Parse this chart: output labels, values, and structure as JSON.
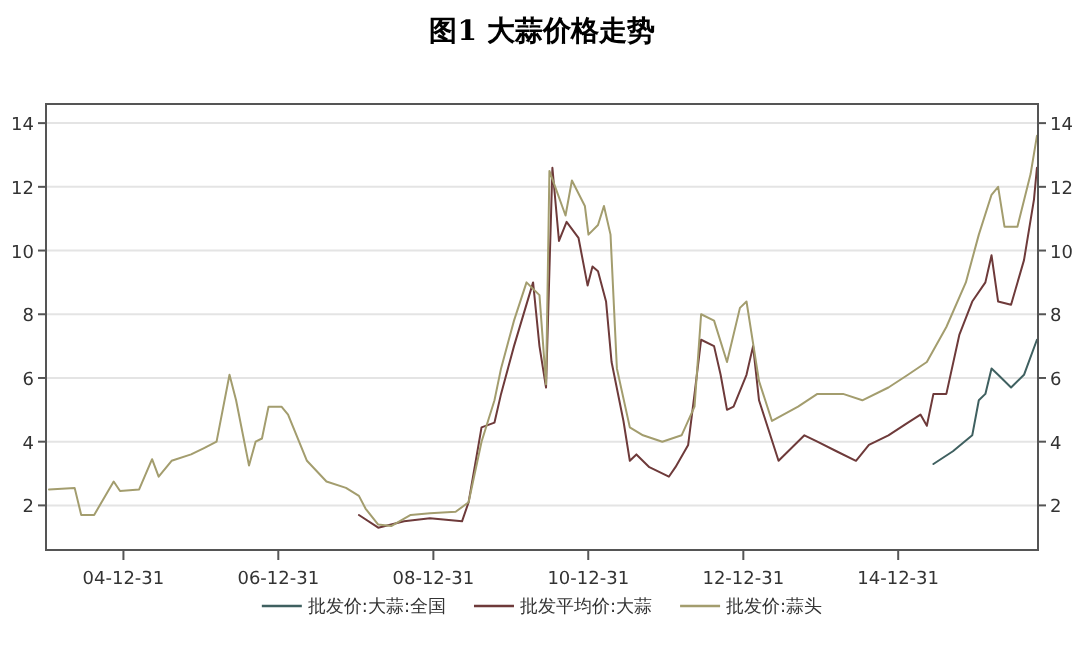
{
  "chart_data": {
    "type": "line",
    "title": "图1  大蒜价格走势",
    "grid": "y",
    "legend": "bottom",
    "marker": "none",
    "line_style": "solid",
    "xlim": [
      "2004-01-01",
      "2016-10-20"
    ],
    "xticks": [
      {
        "value": "2004-12-31",
        "label": "04-12-31"
      },
      {
        "value": "2006-12-31",
        "label": "06-12-31"
      },
      {
        "value": "2008-12-31",
        "label": "08-12-31"
      },
      {
        "value": "2010-12-31",
        "label": "10-12-31"
      },
      {
        "value": "2012-12-31",
        "label": "12-12-31"
      },
      {
        "value": "2014-12-31",
        "label": "14-12-31"
      }
    ],
    "ylim": [
      0.6,
      14.6
    ],
    "yticks": [
      2,
      4,
      6,
      8,
      10,
      12,
      14
    ],
    "y2lim": [
      0.6,
      14.6
    ],
    "y2ticks": [
      2,
      4,
      6,
      8,
      10,
      12,
      14
    ],
    "series": [
      {
        "name": "批发价:大蒜:全国",
        "color": "#3f6060",
        "x": [
          "2015-06-15",
          "2015-09-15",
          "2015-12-15",
          "2016-01-15",
          "2016-02-15",
          "2016-03-15",
          "2016-04-15",
          "2016-06-15",
          "2016-08-15",
          "2016-10-15"
        ],
        "values": [
          3.3,
          3.7,
          4.2,
          5.3,
          5.5,
          6.3,
          6.1,
          5.7,
          6.1,
          7.2
        ]
      },
      {
        "name": "批发平均价:大蒜",
        "color": "#6e3a3a",
        "x": [
          "2008-01-15",
          "2008-04-15",
          "2008-08-15",
          "2008-12-15",
          "2009-05-15",
          "2009-06-15",
          "2009-08-15",
          "2009-10-15",
          "2009-11-15",
          "2010-01-15",
          "2010-04-15",
          "2010-05-15",
          "2010-06-15",
          "2010-07-15",
          "2010-08-15",
          "2010-09-20",
          "2010-11-15",
          "2010-12-28",
          "2011-01-20",
          "2011-02-15",
          "2011-03-25",
          "2011-04-20",
          "2011-06-15",
          "2011-07-15",
          "2011-08-15",
          "2011-10-15",
          "2012-01-15",
          "2012-02-15",
          "2012-04-15",
          "2012-05-15",
          "2012-06-15",
          "2012-08-15",
          "2012-09-15",
          "2012-10-15",
          "2012-11-15",
          "2013-01-15",
          "2013-02-15",
          "2013-03-15",
          "2013-06-15",
          "2013-07-15",
          "2013-10-15",
          "2013-12-15",
          "2014-03-15",
          "2014-06-15",
          "2014-08-15",
          "2014-11-15",
          "2015-02-15",
          "2015-04-15",
          "2015-05-15",
          "2015-06-15",
          "2015-08-15",
          "2015-10-15",
          "2015-12-15",
          "2016-02-15",
          "2016-03-15",
          "2016-04-15",
          "2016-06-15",
          "2016-08-15",
          "2016-10-01",
          "2016-10-15"
        ],
        "values": [
          1.7,
          1.3,
          1.5,
          1.6,
          1.5,
          2.1,
          4.45,
          4.6,
          5.5,
          7.0,
          9.0,
          7.0,
          5.7,
          12.6,
          10.3,
          10.9,
          10.4,
          8.9,
          9.5,
          9.35,
          8.4,
          6.5,
          4.65,
          3.4,
          3.6,
          3.2,
          2.9,
          3.2,
          3.9,
          5.5,
          7.2,
          7.0,
          6.1,
          5.0,
          5.1,
          6.1,
          7.0,
          5.3,
          3.4,
          3.6,
          4.2,
          4.0,
          3.7,
          3.4,
          3.9,
          4.2,
          4.6,
          4.85,
          4.5,
          5.5,
          5.5,
          7.35,
          8.4,
          9.0,
          9.85,
          8.4,
          8.3,
          9.7,
          11.6,
          12.6
        ]
      },
      {
        "name": "批发价:蒜头",
        "color": "#a39d6e",
        "x": [
          "2004-01-15",
          "2004-05-15",
          "2004-06-15",
          "2004-08-15",
          "2004-11-15",
          "2004-12-15",
          "2005-03-15",
          "2005-05-15",
          "2005-06-15",
          "2005-08-15",
          "2005-11-15",
          "2006-01-15",
          "2006-03-15",
          "2006-05-15",
          "2006-06-15",
          "2006-08-15",
          "2006-09-15",
          "2006-10-15",
          "2006-11-15",
          "2007-01-15",
          "2007-02-15",
          "2007-05-15",
          "2007-08-15",
          "2007-11-15",
          "2008-01-15",
          "2008-02-15",
          "2008-04-15",
          "2008-06-15",
          "2008-09-15",
          "2008-12-15",
          "2009-04-15",
          "2009-06-15",
          "2009-08-15",
          "2009-10-15",
          "2009-11-15",
          "2010-01-15",
          "2010-03-15",
          "2010-05-15",
          "2010-06-15",
          "2010-07-01",
          "2010-09-15",
          "2010-10-15",
          "2010-12-15",
          "2011-01-01",
          "2011-02-15",
          "2011-03-15",
          "2011-04-15",
          "2011-05-15",
          "2011-07-15",
          "2011-09-15",
          "2011-12-15",
          "2012-03-15",
          "2012-05-15",
          "2012-06-15",
          "2012-08-15",
          "2012-10-15",
          "2012-12-15",
          "2013-01-15",
          "2013-03-15",
          "2013-05-15",
          "2013-09-15",
          "2013-12-15",
          "2014-04-15",
          "2014-07-15",
          "2014-11-15",
          "2015-02-15",
          "2015-05-15",
          "2015-08-15",
          "2015-11-15",
          "2016-01-15",
          "2016-03-15",
          "2016-04-15",
          "2016-05-15",
          "2016-07-15",
          "2016-09-15",
          "2016-10-15"
        ],
        "values": [
          2.5,
          2.55,
          1.7,
          1.7,
          2.75,
          2.45,
          2.5,
          3.45,
          2.9,
          3.4,
          3.6,
          3.8,
          4.0,
          6.1,
          5.3,
          3.25,
          4.0,
          4.1,
          5.1,
          5.1,
          4.85,
          3.4,
          2.75,
          2.55,
          2.3,
          1.9,
          1.4,
          1.35,
          1.7,
          1.75,
          1.8,
          2.1,
          4.0,
          5.3,
          6.3,
          7.8,
          9.0,
          8.6,
          5.8,
          12.5,
          11.1,
          12.2,
          11.4,
          10.5,
          10.8,
          11.4,
          10.5,
          6.3,
          4.45,
          4.2,
          4.0,
          4.2,
          5.1,
          8.0,
          7.8,
          6.5,
          8.2,
          8.4,
          5.9,
          4.65,
          5.1,
          5.5,
          5.5,
          5.3,
          5.7,
          6.1,
          6.5,
          7.6,
          9.0,
          10.5,
          11.75,
          12.0,
          10.75,
          10.75,
          12.4,
          13.6
        ]
      }
    ]
  }
}
